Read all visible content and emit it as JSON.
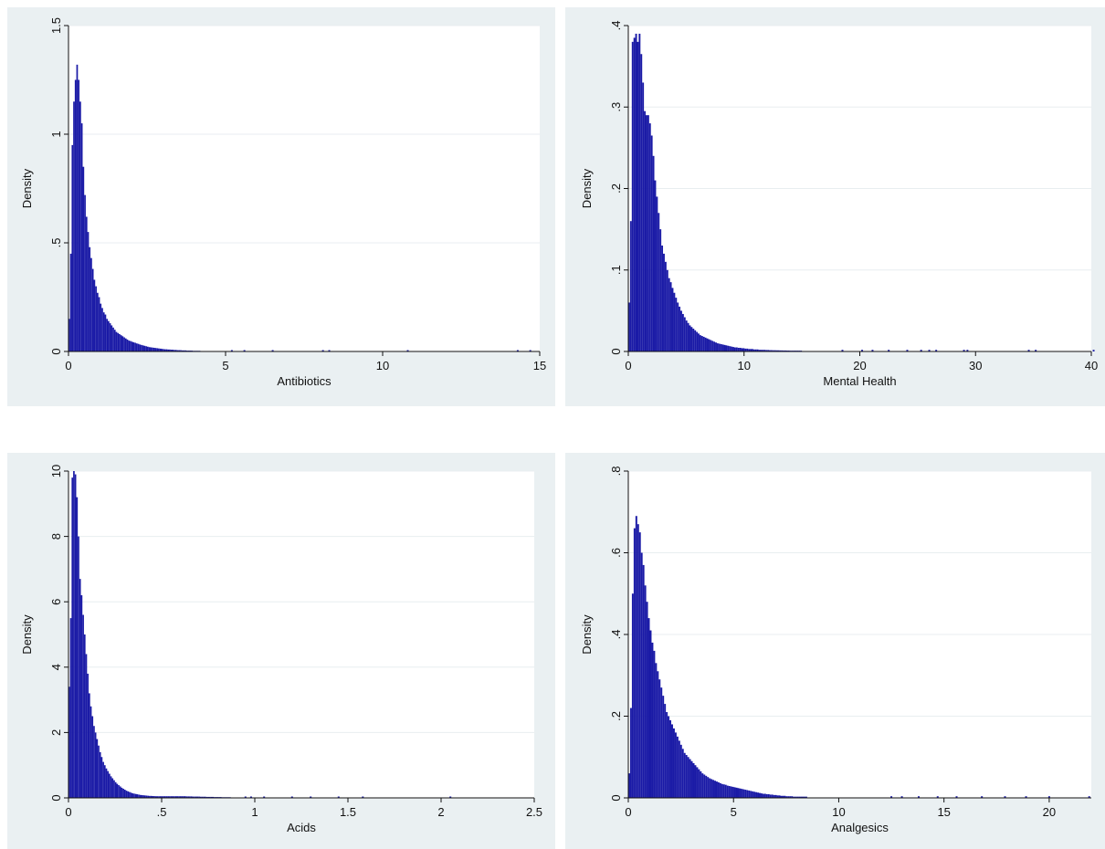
{
  "chart_data": [
    {
      "type": "bar",
      "chart_kind": "histogram",
      "xlabel": "Antibiotics",
      "ylabel": "Density",
      "xlim": [
        0,
        15
      ],
      "ylim": [
        0,
        1.5
      ],
      "xticks": [
        0,
        5,
        10,
        15
      ],
      "xtick_labels": [
        "0",
        "5",
        "10",
        "15"
      ],
      "yticks": [
        0,
        0.5,
        1,
        1.5
      ],
      "ytick_labels": [
        "0",
        ".5",
        "1",
        "1.5"
      ],
      "grid": true,
      "bar_color": "#1a1aa6",
      "bin_width": 0.05,
      "values": [
        0.15,
        0.45,
        0.95,
        1.15,
        1.25,
        1.32,
        1.25,
        1.15,
        1.05,
        0.85,
        0.72,
        0.62,
        0.55,
        0.48,
        0.43,
        0.38,
        0.33,
        0.3,
        0.27,
        0.25,
        0.22,
        0.2,
        0.18,
        0.17,
        0.15,
        0.14,
        0.13,
        0.12,
        0.11,
        0.1,
        0.09,
        0.085,
        0.08,
        0.075,
        0.07,
        0.065,
        0.06,
        0.055,
        0.05,
        0.048,
        0.045,
        0.042,
        0.04,
        0.037,
        0.035,
        0.032,
        0.03,
        0.028,
        0.026,
        0.024,
        0.022,
        0.02,
        0.019,
        0.018,
        0.017,
        0.016,
        0.015,
        0.014,
        0.013,
        0.012,
        0.011,
        0.01,
        0.01,
        0.009,
        0.009,
        0.008,
        0.008,
        0.007,
        0.007,
        0.006,
        0.006,
        0.006,
        0.005,
        0.005,
        0.005,
        0.004,
        0.004,
        0.004,
        0.004,
        0.003,
        0.003,
        0.003,
        0.003,
        0.003,
        0.002,
        0.002,
        0.002,
        0.002,
        0.002,
        0.002
      ],
      "outliers": [
        5.2,
        5.6,
        6.5,
        8.1,
        8.3,
        10.8,
        14.3,
        14.7
      ],
      "outlier_height": 0.006
    },
    {
      "type": "bar",
      "chart_kind": "histogram",
      "xlabel": "Mental Health",
      "ylabel": "Density",
      "xlim": [
        0,
        40
      ],
      "ylim": [
        0,
        0.4
      ],
      "xticks": [
        0,
        10,
        20,
        30,
        40
      ],
      "xtick_labels": [
        "0",
        "10",
        "20",
        "30",
        "40"
      ],
      "yticks": [
        0,
        0.1,
        0.2,
        0.3,
        0.4
      ],
      "ytick_labels": [
        "0",
        ".1",
        ".2",
        ".3",
        ".4"
      ],
      "grid": true,
      "bar_color": "#1a1aa6",
      "bin_width": 0.15,
      "values": [
        0.06,
        0.16,
        0.38,
        0.385,
        0.39,
        0.38,
        0.39,
        0.365,
        0.33,
        0.295,
        0.29,
        0.29,
        0.28,
        0.265,
        0.24,
        0.21,
        0.19,
        0.17,
        0.15,
        0.13,
        0.12,
        0.11,
        0.1,
        0.09,
        0.085,
        0.078,
        0.072,
        0.066,
        0.06,
        0.055,
        0.05,
        0.046,
        0.042,
        0.038,
        0.035,
        0.032,
        0.03,
        0.028,
        0.026,
        0.024,
        0.022,
        0.02,
        0.019,
        0.018,
        0.017,
        0.016,
        0.015,
        0.014,
        0.013,
        0.012,
        0.011,
        0.01,
        0.0095,
        0.009,
        0.0085,
        0.008,
        0.0075,
        0.007,
        0.0065,
        0.006,
        0.0055,
        0.005,
        0.005,
        0.0045,
        0.0045,
        0.004,
        0.004,
        0.0035,
        0.0035,
        0.003,
        0.003,
        0.003,
        0.0025,
        0.0025,
        0.0025,
        0.002,
        0.002,
        0.002,
        0.002,
        0.0018,
        0.0018,
        0.0016,
        0.0016,
        0.0015,
        0.0015,
        0.0014,
        0.0014,
        0.0013,
        0.0013,
        0.0012,
        0.0012,
        0.0011,
        0.0011,
        0.001,
        0.001,
        0.001,
        0.001,
        0.001,
        0.001,
        0.001
      ],
      "outliers": [
        18.5,
        20.2,
        21.1,
        22.5,
        24.1,
        25.3,
        26.0,
        26.6,
        29.0,
        29.3,
        34.6,
        35.2,
        40.2
      ],
      "outlier_height": 0.002
    },
    {
      "type": "bar",
      "chart_kind": "histogram",
      "xlabel": "Acids",
      "ylabel": "Density",
      "xlim": [
        0,
        2.5
      ],
      "ylim": [
        0,
        10
      ],
      "xticks": [
        0,
        0.5,
        1,
        1.5,
        2,
        2.5
      ],
      "xtick_labels": [
        "0",
        ".5",
        "1",
        "1.5",
        "2",
        "2.5"
      ],
      "grid": true,
      "yticks": [
        0,
        2,
        4,
        6,
        8,
        10
      ],
      "ytick_labels": [
        "0",
        "2",
        "4",
        "6",
        "8",
        "10"
      ],
      "bar_color": "#1a1aa6",
      "bin_width": 0.0083,
      "values": [
        3.4,
        5.5,
        9.8,
        10.0,
        9.9,
        9.2,
        8.0,
        6.7,
        6.2,
        5.6,
        5.0,
        4.4,
        3.8,
        3.2,
        2.8,
        2.5,
        2.2,
        2.0,
        1.8,
        1.6,
        1.4,
        1.25,
        1.1,
        1.0,
        0.9,
        0.82,
        0.74,
        0.66,
        0.6,
        0.54,
        0.48,
        0.43,
        0.39,
        0.35,
        0.31,
        0.28,
        0.25,
        0.22,
        0.2,
        0.18,
        0.16,
        0.14,
        0.13,
        0.12,
        0.11,
        0.1,
        0.09,
        0.085,
        0.08,
        0.075,
        0.07,
        0.065,
        0.06,
        0.06,
        0.055,
        0.055,
        0.05,
        0.05,
        0.05,
        0.05,
        0.05,
        0.05,
        0.05,
        0.05,
        0.05,
        0.05,
        0.05,
        0.05,
        0.05,
        0.05,
        0.05,
        0.05,
        0.05,
        0.05,
        0.05,
        0.05,
        0.045,
        0.045,
        0.045,
        0.045,
        0.04,
        0.04,
        0.04,
        0.04,
        0.04,
        0.035,
        0.035,
        0.035,
        0.035,
        0.03,
        0.03,
        0.03,
        0.03,
        0.03,
        0.025,
        0.025,
        0.025,
        0.025,
        0.025,
        0.02,
        0.02,
        0.02,
        0.02,
        0.02,
        0.02
      ],
      "outliers": [
        0.95,
        0.98,
        1.05,
        1.2,
        1.3,
        1.45,
        1.58,
        2.05
      ],
      "outlier_height": 0.03
    },
    {
      "type": "bar",
      "chart_kind": "histogram",
      "xlabel": "Analgesics",
      "ylabel": "Density",
      "xlim": [
        0,
        22
      ],
      "ylim": [
        0,
        0.8
      ],
      "xticks": [
        0,
        5,
        10,
        15,
        20
      ],
      "xtick_labels": [
        "0",
        "5",
        "10",
        "15",
        "20"
      ],
      "yticks": [
        0,
        0.2,
        0.4,
        0.6,
        0.8
      ],
      "ytick_labels": [
        "0",
        ".2",
        ".4",
        ".6",
        ".8"
      ],
      "grid": true,
      "bar_color": "#1a1aa6",
      "bin_width": 0.085,
      "values": [
        0.06,
        0.22,
        0.5,
        0.66,
        0.69,
        0.67,
        0.65,
        0.6,
        0.57,
        0.52,
        0.48,
        0.44,
        0.41,
        0.38,
        0.36,
        0.33,
        0.31,
        0.29,
        0.27,
        0.25,
        0.23,
        0.21,
        0.2,
        0.19,
        0.18,
        0.17,
        0.16,
        0.15,
        0.14,
        0.13,
        0.12,
        0.11,
        0.105,
        0.1,
        0.095,
        0.09,
        0.085,
        0.08,
        0.075,
        0.07,
        0.065,
        0.06,
        0.057,
        0.054,
        0.051,
        0.048,
        0.046,
        0.044,
        0.042,
        0.04,
        0.038,
        0.036,
        0.034,
        0.033,
        0.032,
        0.03,
        0.029,
        0.028,
        0.027,
        0.026,
        0.025,
        0.024,
        0.023,
        0.022,
        0.021,
        0.02,
        0.019,
        0.018,
        0.017,
        0.016,
        0.015,
        0.014,
        0.013,
        0.012,
        0.011,
        0.01,
        0.01,
        0.009,
        0.009,
        0.008,
        0.008,
        0.007,
        0.007,
        0.006,
        0.006,
        0.005,
        0.005,
        0.005,
        0.004,
        0.004,
        0.004,
        0.004,
        0.003,
        0.003,
        0.003,
        0.003,
        0.003,
        0.003,
        0.003,
        0.003
      ],
      "outliers": [
        12.5,
        13.0,
        13.8,
        14.7,
        15.6,
        16.8,
        17.9,
        18.9,
        20.0,
        21.9
      ],
      "outlier_height": 0.004
    }
  ]
}
